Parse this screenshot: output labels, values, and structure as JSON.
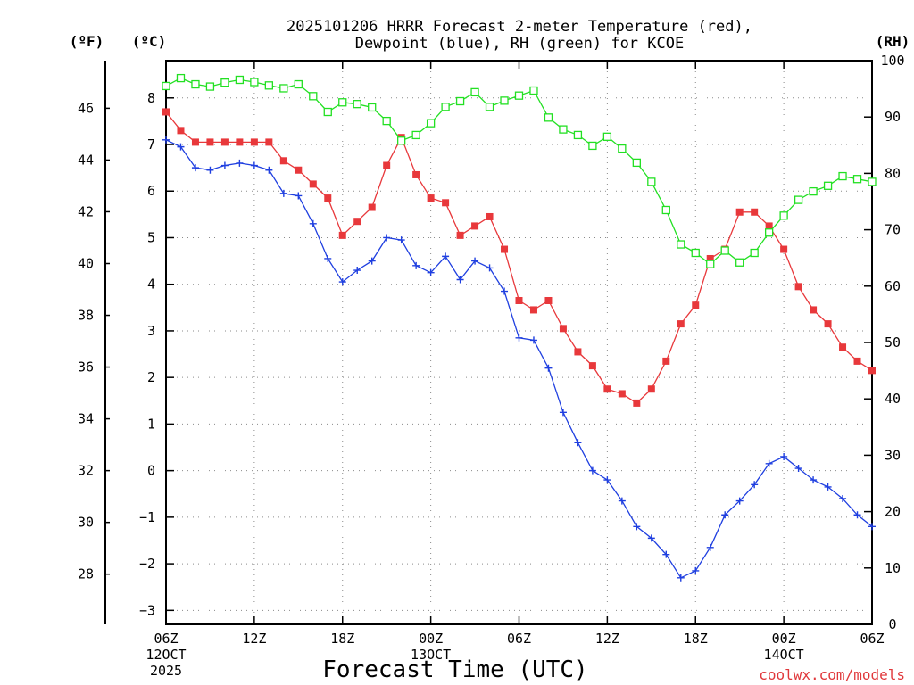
{
  "chart_data": {
    "type": "line",
    "title": [
      "2025101206 HRRR Forecast 2-meter Temperature (red),",
      "Dewpoint (blue), RH (green) for KCOE"
    ],
    "xlabel": "Forecast Time (UTC)",
    "units": {
      "fahrenheit": "(ºF)",
      "celsius": "(ºC)",
      "rh": "(RH)"
    },
    "credit": "coolwx.com/models",
    "x_range": [
      0,
      48
    ],
    "x_ticks": [
      {
        "at": 0,
        "lines": [
          "06Z",
          "12OCT",
          "2025"
        ]
      },
      {
        "at": 6,
        "lines": [
          "12Z"
        ]
      },
      {
        "at": 12,
        "lines": [
          "18Z"
        ]
      },
      {
        "at": 18,
        "lines": [
          "00Z",
          "13OCT"
        ]
      },
      {
        "at": 24,
        "lines": [
          "06Z"
        ]
      },
      {
        "at": 30,
        "lines": [
          "12Z"
        ]
      },
      {
        "at": 36,
        "lines": [
          "18Z"
        ]
      },
      {
        "at": 42,
        "lines": [
          "00Z",
          "14OCT"
        ]
      },
      {
        "at": 48,
        "lines": [
          "06Z"
        ]
      }
    ],
    "y_celsius": {
      "range": [
        -3.3,
        8.8
      ],
      "ticks": [
        -3,
        -2,
        -1,
        0,
        1,
        2,
        3,
        4,
        5,
        6,
        7,
        8
      ]
    },
    "y_fahrenheit": {
      "ticks": [
        28,
        30,
        32,
        34,
        36,
        38,
        40,
        42,
        44,
        46
      ]
    },
    "y_rh": {
      "range": [
        0,
        100
      ],
      "ticks": [
        0,
        10,
        20,
        30,
        40,
        50,
        60,
        70,
        80,
        90,
        100
      ]
    },
    "series": [
      {
        "name": "Temperature",
        "unit": "C",
        "color": "#e8383b",
        "marker": "filled-square",
        "values": [
          7.7,
          7.3,
          7.05,
          7.05,
          7.05,
          7.05,
          7.05,
          7.05,
          6.65,
          6.45,
          6.15,
          5.85,
          5.05,
          5.35,
          5.65,
          6.55,
          7.15,
          6.35,
          5.85,
          5.75,
          5.05,
          5.25,
          5.45,
          4.75,
          3.65,
          3.45,
          3.65,
          3.05,
          2.55,
          2.25,
          1.75,
          1.65,
          1.45,
          1.75,
          2.35,
          3.15,
          3.55,
          4.55,
          4.75,
          5.55,
          5.55,
          5.25,
          4.75,
          3.95,
          3.45,
          3.15,
          2.65,
          2.35,
          2.15
        ]
      },
      {
        "name": "Dewpoint",
        "unit": "C",
        "color": "#1f3fe0",
        "marker": "plus",
        "values": [
          7.1,
          6.95,
          6.5,
          6.45,
          6.55,
          6.6,
          6.55,
          6.45,
          5.95,
          5.9,
          5.3,
          4.55,
          4.05,
          4.3,
          4.5,
          5.0,
          4.95,
          4.4,
          4.25,
          4.6,
          4.1,
          4.5,
          4.35,
          3.85,
          2.85,
          2.8,
          2.2,
          1.25,
          0.6,
          0.0,
          -0.2,
          -0.65,
          -1.2,
          -1.45,
          -1.8,
          -2.3,
          -2.15,
          -1.65,
          -0.95,
          -0.65,
          -0.3,
          0.15,
          0.3,
          0.05,
          -0.2,
          -0.35,
          -0.6,
          -0.95,
          -1.2
        ]
      },
      {
        "name": "RH",
        "unit": "%",
        "color": "#22e022",
        "marker": "open-square",
        "values": [
          95.5,
          96.9,
          95.8,
          95.4,
          96.1,
          96.6,
          96.2,
          95.6,
          95.1,
          95.8,
          93.7,
          90.9,
          92.6,
          92.3,
          91.7,
          89.3,
          85.8,
          86.8,
          88.9,
          91.8,
          92.8,
          94.4,
          91.8,
          92.9,
          93.8,
          94.7,
          89.9,
          87.8,
          86.8,
          84.9,
          86.5,
          84.4,
          81.9,
          78.5,
          73.5,
          67.4,
          65.9,
          63.9,
          66.3,
          64.2,
          65.9,
          69.5,
          72.5,
          75.3,
          76.8,
          77.8,
          79.5,
          79.0,
          78.5
        ]
      }
    ]
  }
}
